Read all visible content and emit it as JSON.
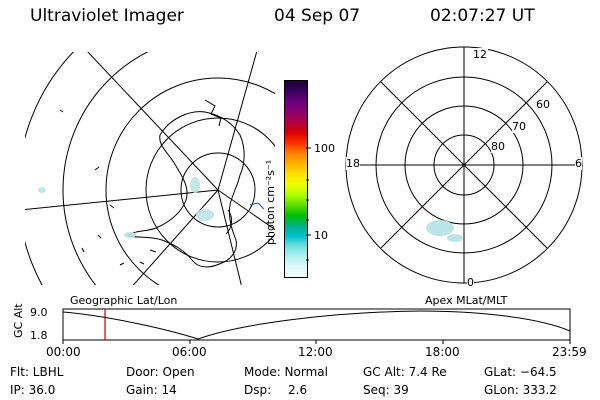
{
  "header": {
    "instrument": "Ultraviolet Imager",
    "date": "04 Sep 07",
    "time": "02:07:27 UT"
  },
  "colorbar": {
    "unit_label": "photon cm⁻²s⁻¹",
    "tick_100": "100",
    "tick_10": "10",
    "colors": [
      "#1a0033",
      "#3a0060",
      "#6a0080",
      "#8c0070",
      "#b00040",
      "#d80000",
      "#ff3000",
      "#ff8000",
      "#ffb000",
      "#ffe000",
      "#f0ff00",
      "#b0ff00",
      "#60e000",
      "#00c000",
      "#00b080",
      "#00c0d0",
      "#70e0e0",
      "#b0f0f0",
      "#e0f8f8",
      "#f5fcfc"
    ]
  },
  "geo_panel": {
    "label": "Geographic Lat/Lon"
  },
  "apex_panel": {
    "label": "Apex MLat/MLT",
    "mlt_top": "12",
    "mlt_left": "18",
    "mlt_right": "6",
    "mlt_bottom": "0",
    "lat_60": "60",
    "lat_70": "70",
    "lat_80": "80"
  },
  "altitude_plot": {
    "ylabel": "GC Alt",
    "y_max": "9.0",
    "y_min": "1.8",
    "x_ticks": [
      "00:00",
      "06:00",
      "12:00",
      "18:00",
      "23:59"
    ],
    "marker_color": "#cc0000"
  },
  "info": {
    "filter": "Flt: LBHL",
    "ip": "IP: 36.0",
    "door": "Door: Open",
    "gain": "Gain: 14",
    "mode": "Mode: Normal",
    "dsp_label": "Dsp:",
    "dsp_value": "2.6",
    "gc_alt": "GC Alt: 7.4 Re",
    "seq": "Seq: 39",
    "glat": "GLat: −64.5",
    "glon": "GLon: 333.2"
  }
}
